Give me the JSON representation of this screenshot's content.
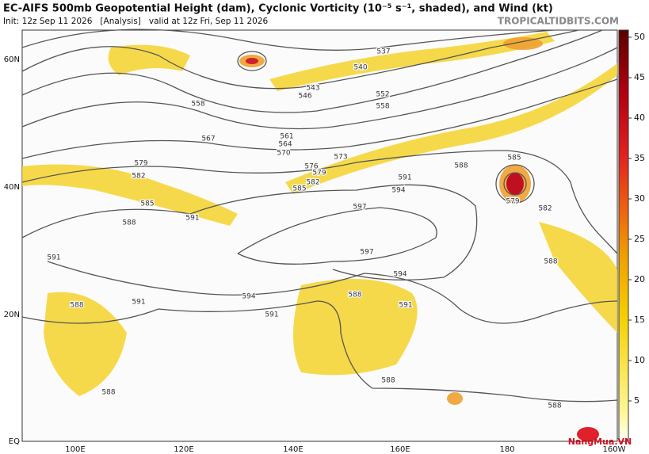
{
  "header": {
    "title": "EC-AIFS 500mb Geopotential Height (dam), Cyclonic Vorticity (10⁻⁵ s⁻¹, shaded), and Wind (kt)",
    "subtitle": "Init: 12z Sep 11 2026   [Analysis]   valid at 12z Fri, Sep 11 2026",
    "brand": "TROPICALTIDBITS.COM"
  },
  "map": {
    "lon_labels": [
      "100E",
      "120E",
      "140E",
      "160E",
      "180",
      "160W"
    ],
    "lat_labels": [
      "60N",
      "40N",
      "20N",
      "EQ"
    ],
    "contour_labels": [
      "537",
      "540",
      "543",
      "546",
      "552",
      "558",
      "558",
      "567",
      "561",
      "564",
      "570",
      "573",
      "576",
      "579",
      "579",
      "582",
      "582",
      "585",
      "585",
      "588",
      "591",
      "597",
      "594",
      "591",
      "588",
      "585",
      "579",
      "582",
      "588",
      "597",
      "594",
      "591",
      "588",
      "594",
      "591",
      "591",
      "591",
      "588",
      "588",
      "588",
      "588"
    ]
  },
  "colorbar": {
    "ticks": [
      50,
      45,
      40,
      35,
      30,
      25,
      20,
      15,
      10,
      5
    ]
  },
  "watermark": "NangMua.VN"
}
